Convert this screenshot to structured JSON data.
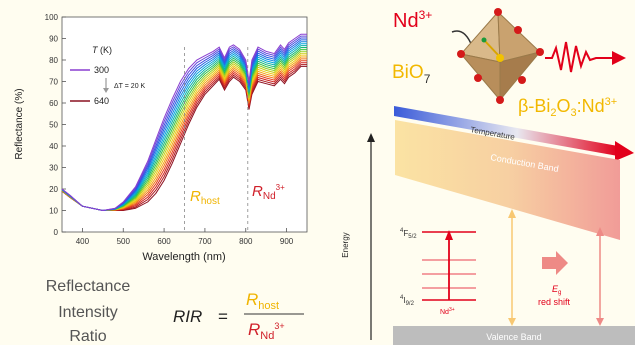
{
  "chart_data": {
    "type": "line",
    "xlabel": "Wavelength (nm)",
    "ylabel": "Reflectance (%)",
    "xlim": [
      350,
      950
    ],
    "ylim": [
      0,
      100
    ],
    "xticks": [
      400,
      500,
      600,
      700,
      800,
      900
    ],
    "yticks": [
      0,
      10,
      20,
      30,
      40,
      50,
      60,
      70,
      80,
      90,
      100
    ],
    "legend": {
      "title": "T (K)",
      "low_label": "300",
      "step_label": "ΔT = 20 K",
      "high_label": "640"
    },
    "temperatures": [
      300,
      320,
      340,
      360,
      380,
      400,
      420,
      440,
      460,
      480,
      500,
      520,
      540,
      560,
      580,
      600,
      620,
      640
    ],
    "region_labels": {
      "host": "R",
      "host_sub": "host",
      "nd": "R",
      "nd_sub": "Nd",
      "nd_sup": "3+"
    },
    "dashed_lines_x": [
      650,
      805
    ],
    "series_low_temp": {
      "name": "300",
      "x": [
        350,
        370,
        400,
        450,
        480,
        500,
        530,
        560,
        580,
        600,
        620,
        640,
        660,
        680,
        700,
        720,
        735,
        748,
        760,
        770,
        785,
        800,
        808,
        815,
        830,
        850,
        870,
        885,
        895,
        905,
        920,
        935,
        950
      ],
      "y": [
        20,
        17,
        12,
        10,
        11,
        14,
        21,
        33,
        43,
        53,
        62,
        70,
        76,
        80,
        82,
        84,
        86,
        81,
        86,
        87,
        85,
        80,
        70,
        80,
        86,
        84,
        83,
        87,
        85,
        88,
        90,
        92,
        92
      ]
    },
    "series_high_temp": {
      "name": "640",
      "x": [
        350,
        370,
        400,
        450,
        480,
        500,
        530,
        560,
        580,
        600,
        620,
        640,
        660,
        680,
        700,
        720,
        735,
        748,
        760,
        770,
        785,
        800,
        808,
        815,
        830,
        850,
        870,
        885,
        895,
        905,
        920,
        935,
        950
      ],
      "y": [
        19,
        16,
        12,
        10,
        10,
        10,
        11,
        14,
        18,
        24,
        32,
        41,
        50,
        58,
        64,
        68,
        71,
        66,
        70,
        72,
        70,
        66,
        57,
        64,
        70,
        69,
        68,
        71,
        69,
        72,
        74,
        77,
        77
      ]
    }
  },
  "ratio": {
    "line1": "Reflectance",
    "line2": "Intensity",
    "line3": "Ratio",
    "lhs": "RIR",
    "eq": "=",
    "num_R": "R",
    "num_sub": "host",
    "den_R": "R",
    "den_sub": "Nd",
    "den_sup": "3+"
  },
  "structure": {
    "ion": "Nd",
    "ion_sup": "3+",
    "poly": "BiO",
    "poly_sub": "7",
    "material_pre": "β-Bi",
    "material_sub1": "2",
    "material_mid": "O",
    "material_sub2": "3",
    "material_post": ":Nd",
    "material_sup": "3+"
  },
  "bands": {
    "temperature": "Temperature",
    "conduction": "Conduction Band",
    "valence": "Valence Band",
    "energy": "Energy",
    "level_upper": "F",
    "level_upper_pre": "4",
    "level_upper_sub": "5/2",
    "level_lower": "I",
    "level_lower_pre": "4",
    "level_lower_sub": "9/2",
    "level_ion": "Nd",
    "level_ion_sup": "3+",
    "eg": "E",
    "eg_sub": "g",
    "red_shift": "red shift"
  },
  "colors": {
    "host_label": "#f0b400",
    "nd_label": "#d0202a",
    "red": "#e2001a",
    "cband_left": "#fbe3a3",
    "cband_right": "#f3a7a3",
    "vband": "#bdbdbd",
    "arrow_yellow": "#f8c872",
    "arrow_pink": "#ee8a86"
  }
}
